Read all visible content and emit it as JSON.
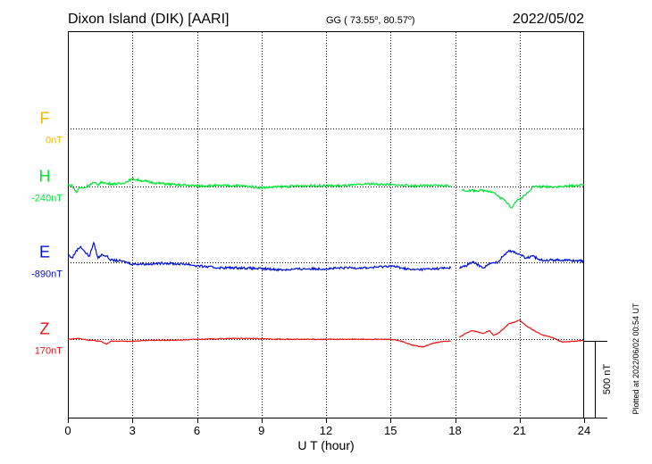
{
  "header": {
    "station": "Dixon Island (DIK)  [AARI]",
    "coords_prefix": "GG ( 73.55",
    "coords_mid": ",  80.57",
    "coords_suffix": ")",
    "coords_degree": "o",
    "date": "2022/05/02"
  },
  "footer": {
    "plotted": "Plotted at 2022/06/02 00:54 UT"
  },
  "chart_data": {
    "type": "line",
    "title": "Dixon Island (DIK)  [AARI]",
    "xlabel": "U T (hour)",
    "ylabel": "",
    "x_ticks": [
      "0",
      "3",
      "6",
      "9",
      "12",
      "15",
      "18",
      "21",
      "24"
    ],
    "xlim": [
      0,
      24
    ],
    "ylim_nT": [
      -1000,
      1000
    ],
    "grid": true,
    "scale_bar": {
      "label": "500 nT",
      "value_nT": 500
    },
    "series": [
      {
        "name": "F",
        "baseline_label": "0nT",
        "color": "#f5b800",
        "offset_nT": 500,
        "x": [],
        "y": []
      },
      {
        "name": "H",
        "baseline_label": "-240nT",
        "color": "#00e633",
        "offset_nT": 200,
        "x": [
          0,
          0.2,
          0.4,
          0.5,
          0.6,
          0.8,
          1.0,
          1.2,
          1.4,
          1.6,
          1.8,
          2.0,
          2.5,
          3.0,
          3.5,
          4.0,
          5.0,
          6.0,
          7.0,
          8.0,
          9.0,
          10.0,
          11.0,
          12.0,
          13.0,
          14.0,
          15.0,
          16.0,
          17.0,
          17.8,
          18.0,
          18.3,
          19.0,
          19.5,
          19.8,
          20.0,
          20.3,
          20.5,
          20.6,
          20.7,
          20.8,
          21.0,
          21.3,
          21.6,
          22.0,
          23.0,
          24.0
        ],
        "y": [
          10,
          5,
          -30,
          -10,
          -5,
          -5,
          10,
          20,
          10,
          25,
          15,
          15,
          15,
          40,
          30,
          20,
          10,
          5,
          5,
          5,
          -5,
          0,
          5,
          5,
          5,
          15,
          10,
          5,
          5,
          5,
          null,
          -20,
          -20,
          -20,
          -30,
          -50,
          -70,
          -90,
          -110,
          -100,
          -80,
          -65,
          -40,
          0,
          0,
          0,
          10
        ]
      },
      {
        "name": "E",
        "baseline_label": "-890nT",
        "color": "#0011dd",
        "offset_nT": -190,
        "x": [
          0,
          0.2,
          0.4,
          0.6,
          0.8,
          1.0,
          1.2,
          1.4,
          1.6,
          1.8,
          2.0,
          2.5,
          3.0,
          3.5,
          4.0,
          4.5,
          5.0,
          5.5,
          6.0,
          7.0,
          8.0,
          9.0,
          10.0,
          11.0,
          12.0,
          13.0,
          14.0,
          15.0,
          15.5,
          16.0,
          17.0,
          17.8,
          18.0,
          18.2,
          18.5,
          18.8,
          19.0,
          19.3,
          19.6,
          20.0,
          20.3,
          20.5,
          20.8,
          21.0,
          21.3,
          21.6,
          22.0,
          23.0,
          24.0
        ],
        "y": [
          40,
          20,
          60,
          80,
          50,
          30,
          100,
          20,
          40,
          30,
          10,
          5,
          -10,
          -10,
          -10,
          -5,
          -10,
          -10,
          -20,
          -30,
          -30,
          -35,
          -40,
          -35,
          -35,
          -30,
          -30,
          -20,
          -30,
          -40,
          -35,
          -30,
          null,
          -30,
          -20,
          0,
          -10,
          -30,
          -10,
          0,
          40,
          60,
          50,
          40,
          20,
          30,
          10,
          10,
          5
        ]
      },
      {
        "name": "Z",
        "baseline_label": "170nT",
        "color": "#ee1111",
        "offset_nT": -590,
        "x": [
          0,
          0.5,
          1.0,
          1.5,
          1.8,
          2.0,
          3.0,
          4.0,
          5.0,
          6.0,
          8.0,
          10.0,
          12.0,
          14.0,
          15.0,
          15.5,
          16.0,
          16.5,
          17.0,
          17.5,
          17.8,
          18.0,
          18.2,
          18.5,
          18.8,
          19.0,
          19.3,
          19.6,
          19.8,
          20.0,
          20.3,
          20.5,
          20.8,
          21.0,
          21.3,
          21.6,
          22.0,
          22.5,
          23.0,
          23.5,
          24.0
        ],
        "y": [
          0,
          5,
          -5,
          -10,
          -25,
          -10,
          -10,
          -5,
          -5,
          0,
          5,
          0,
          0,
          0,
          0,
          -10,
          -30,
          -40,
          -20,
          -10,
          -10,
          null,
          10,
          30,
          45,
          40,
          30,
          45,
          20,
          30,
          60,
          80,
          90,
          100,
          70,
          50,
          25,
          10,
          -15,
          -10,
          -5
        ]
      }
    ]
  }
}
